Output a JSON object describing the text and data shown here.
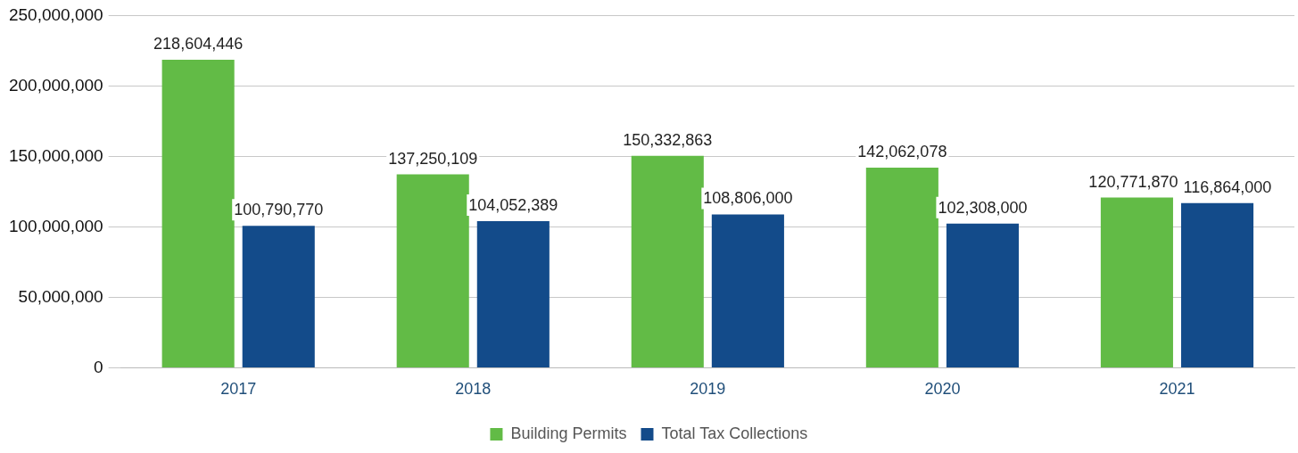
{
  "chart_data": {
    "type": "bar",
    "categories": [
      "2017",
      "2018",
      "2019",
      "2020",
      "2021"
    ],
    "series": [
      {
        "name": "Building Permits",
        "color": "#62bb46",
        "values": [
          218604446,
          137250109,
          150332863,
          142062078,
          120771870
        ],
        "value_labels": [
          "218,604,446",
          "137,250,109",
          "150,332,863",
          "142,062,078",
          "120,771,870"
        ]
      },
      {
        "name": "Total Tax Collections",
        "color": "#134b8a",
        "values": [
          100790770,
          104052389,
          108806000,
          102308000,
          116864000
        ],
        "value_labels": [
          "100,790,770",
          "104,052,389",
          "108,806,000",
          "102,308,000",
          "116,864,000"
        ]
      }
    ],
    "ylim": [
      0,
      250000000
    ],
    "yticks": [
      {
        "value": 0,
        "label": "0"
      },
      {
        "value": 50000000,
        "label": "50,000,000"
      },
      {
        "value": 100000000,
        "label": "100,000,000"
      },
      {
        "value": 150000000,
        "label": "150,000,000"
      },
      {
        "value": 200000000,
        "label": "200,000,000"
      },
      {
        "value": 250000000,
        "label": "250,000,000"
      }
    ],
    "grid": "y",
    "legend": "bottom"
  }
}
